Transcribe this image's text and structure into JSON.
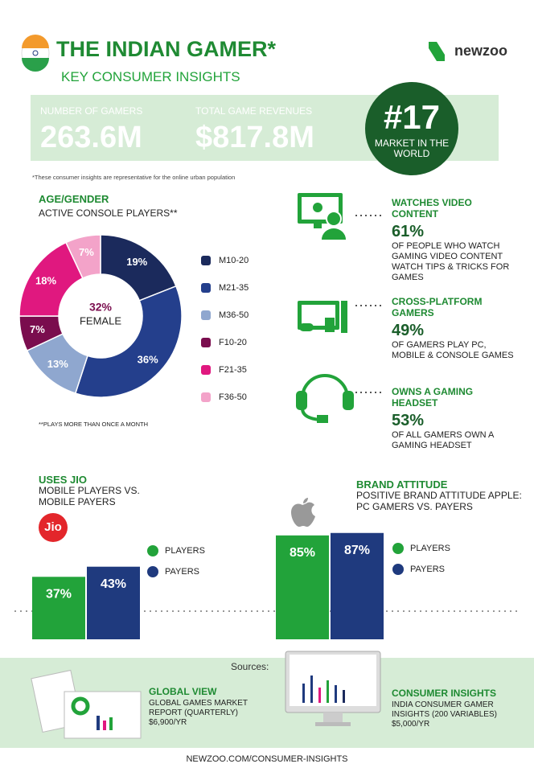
{
  "header": {
    "title": "THE INDIAN GAMER*",
    "subtitle": "KEY CONSUMER INSIGHTS",
    "brand": "newzoo"
  },
  "stats": [
    {
      "label": "NUMBER OF GAMERS",
      "value": "263.6M"
    },
    {
      "label": "TOTAL GAME REVENUES",
      "value": "$817.8M"
    }
  ],
  "rank": {
    "value": "#17",
    "label": "MARKET IN THE WORLD"
  },
  "note": "*These consumer insights are representative for the online urban population",
  "age_gender": {
    "title": "AGE/GENDER",
    "subtitle": "ACTIVE CONSOLE PLAYERS**",
    "center_value": "32%",
    "center_label": "FEMALE",
    "footnote": "**PLAYS MORE THAN ONCE A MONTH"
  },
  "insights": [
    {
      "title": "WATCHES VIDEO CONTENT",
      "value": "61%",
      "text": "OF PEOPLE WHO WATCH GAMING VIDEO CONTENT WATCH TIPS & TRICKS FOR GAMES"
    },
    {
      "title": "CROSS-PLATFORM GAMERS",
      "value": "49%",
      "text": "OF GAMERS PLAY PC, MOBILE & CONSOLE GAMES"
    },
    {
      "title": "OWNS A GAMING HEADSET",
      "value": "53%",
      "text": "OF ALL GAMERS OWN A GAMING HEADSET"
    }
  ],
  "chart_data": [
    {
      "type": "pie",
      "categories": [
        "M10-20",
        "M21-35",
        "M36-50",
        "F10-20",
        "F21-35",
        "F36-50"
      ],
      "values": [
        19,
        36,
        13,
        7,
        18,
        7
      ],
      "value_labels": [
        "19%",
        "36%",
        "13%",
        "7%",
        "18%",
        "7%"
      ],
      "colors": [
        "#1b2a5c",
        "#243f8c",
        "#8fa7cf",
        "#7a0d4e",
        "#e0187f",
        "#f3a3c9"
      ]
    },
    {
      "type": "bar",
      "title": "USES JIO",
      "subtitle": "MOBILE PLAYERS VS. MOBILE PAYERS",
      "logo": "Jio",
      "categories": [
        "PLAYERS",
        "PAYERS"
      ],
      "values": [
        37,
        43
      ],
      "value_labels": [
        "37%",
        "43%"
      ],
      "colors": [
        "#22a33a",
        "#1f3a7e"
      ]
    },
    {
      "type": "bar",
      "title": "BRAND ATTITUDE",
      "subtitle": "POSITIVE BRAND ATTITUDE APPLE: PC GAMERS VS. PAYERS",
      "categories": [
        "PLAYERS",
        "PAYERS"
      ],
      "values": [
        85,
        87
      ],
      "value_labels": [
        "85%",
        "87%"
      ],
      "colors": [
        "#22a33a",
        "#1f3a7e"
      ]
    }
  ],
  "sources": {
    "label": "Sources:",
    "products": [
      {
        "title": "GLOBAL VIEW",
        "text": "GLOBAL GAMES MARKET REPORT (QUARTERLY)",
        "price": "$6,900/YR"
      },
      {
        "title": "CONSUMER INSIGHTS",
        "text": "INDIA CONSUMER GAMER INSIGHTS (200 VARIABLES)",
        "price": "$5,000/YR"
      }
    ]
  },
  "footer": "NEWZOO.COM/CONSUMER-INSIGHTS"
}
